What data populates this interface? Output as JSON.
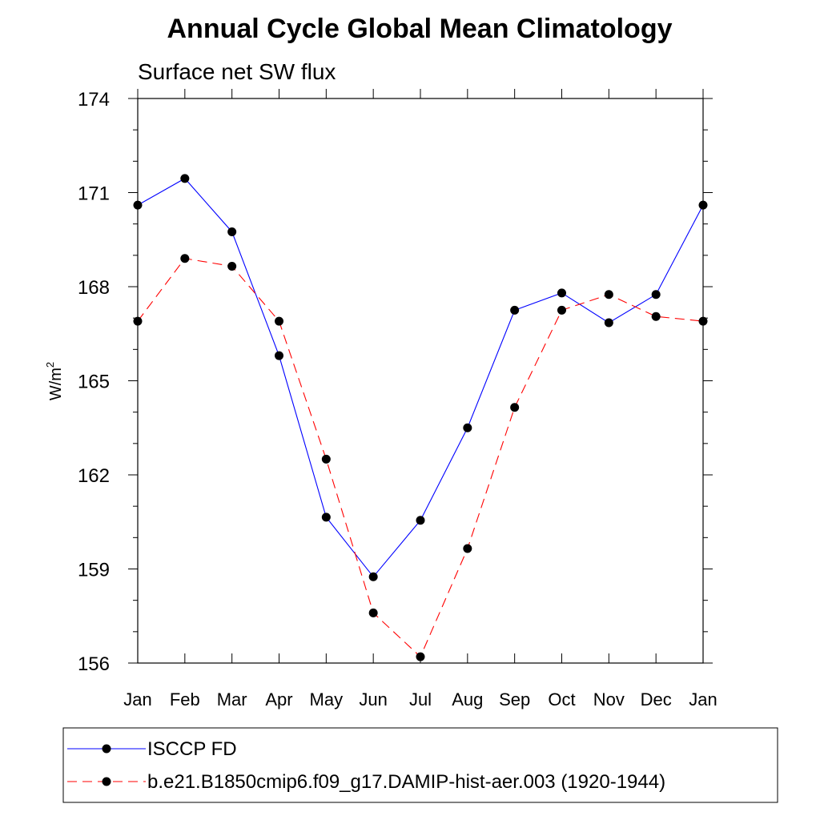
{
  "chart_data": {
    "type": "line",
    "title": "Annual Cycle Global Mean Climatology",
    "subtitle": "Surface net SW flux",
    "ylabel": "W/m",
    "ylabel_sup": "2",
    "xlabel": "",
    "ylim": [
      156,
      174
    ],
    "yticks": [
      "174",
      "171",
      "168",
      "165",
      "162",
      "159",
      "156"
    ],
    "ytick_values": [
      174,
      171,
      168,
      165,
      162,
      159,
      156
    ],
    "categories": [
      "Jan",
      "Feb",
      "Mar",
      "Apr",
      "May",
      "Jun",
      "Jul",
      "Aug",
      "Sep",
      "Oct",
      "Nov",
      "Dec",
      "Jan"
    ],
    "series": [
      {
        "name": "ISCCP FD",
        "color": "#0000ff",
        "dash": "solid",
        "values": [
          170.6,
          171.45,
          169.75,
          165.8,
          160.65,
          158.75,
          160.55,
          163.5,
          167.25,
          167.8,
          166.85,
          167.75,
          170.6
        ]
      },
      {
        "name": "b.e21.B1850cmip6.f09_g17.DAMIP-hist-aer.003 (1920-1944)",
        "color": "#ff0000",
        "dash": "dashed",
        "values": [
          166.9,
          168.9,
          168.65,
          166.9,
          162.5,
          157.6,
          156.2,
          159.65,
          164.15,
          167.25,
          167.75,
          167.05,
          166.9
        ]
      }
    ],
    "marker_color": "#000000",
    "legend_position": "bottom"
  }
}
